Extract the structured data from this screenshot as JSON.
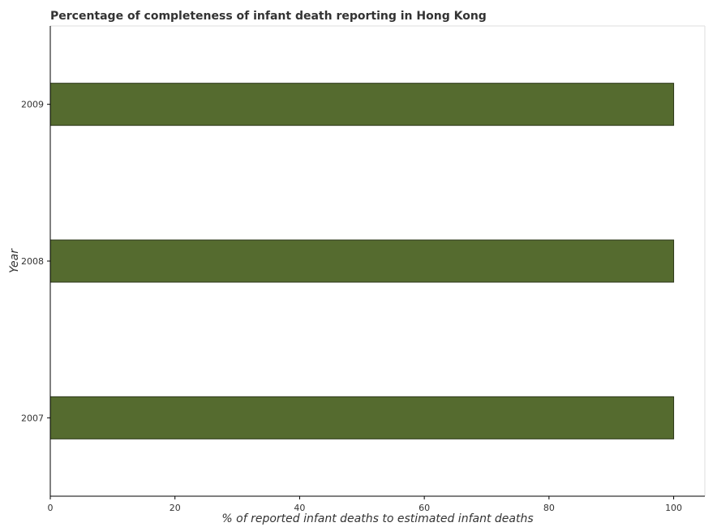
{
  "chart_data": {
    "type": "bar",
    "orientation": "horizontal",
    "title": "Percentage of completeness of infant death reporting in Hong Kong",
    "xlabel": "% of reported infant deaths to estimated infant deaths",
    "ylabel": "Year",
    "categories": [
      "2007",
      "2008",
      "2009"
    ],
    "values": [
      100,
      100,
      100
    ],
    "xlim": [
      0,
      105
    ],
    "xticks": [
      0,
      20,
      40,
      60,
      80,
      100
    ],
    "grid": false,
    "legend": "none",
    "colors": {
      "bar": "#556b2f",
      "bar_stroke": "#2b3618",
      "axis": "#000000",
      "text": "#333333"
    }
  }
}
